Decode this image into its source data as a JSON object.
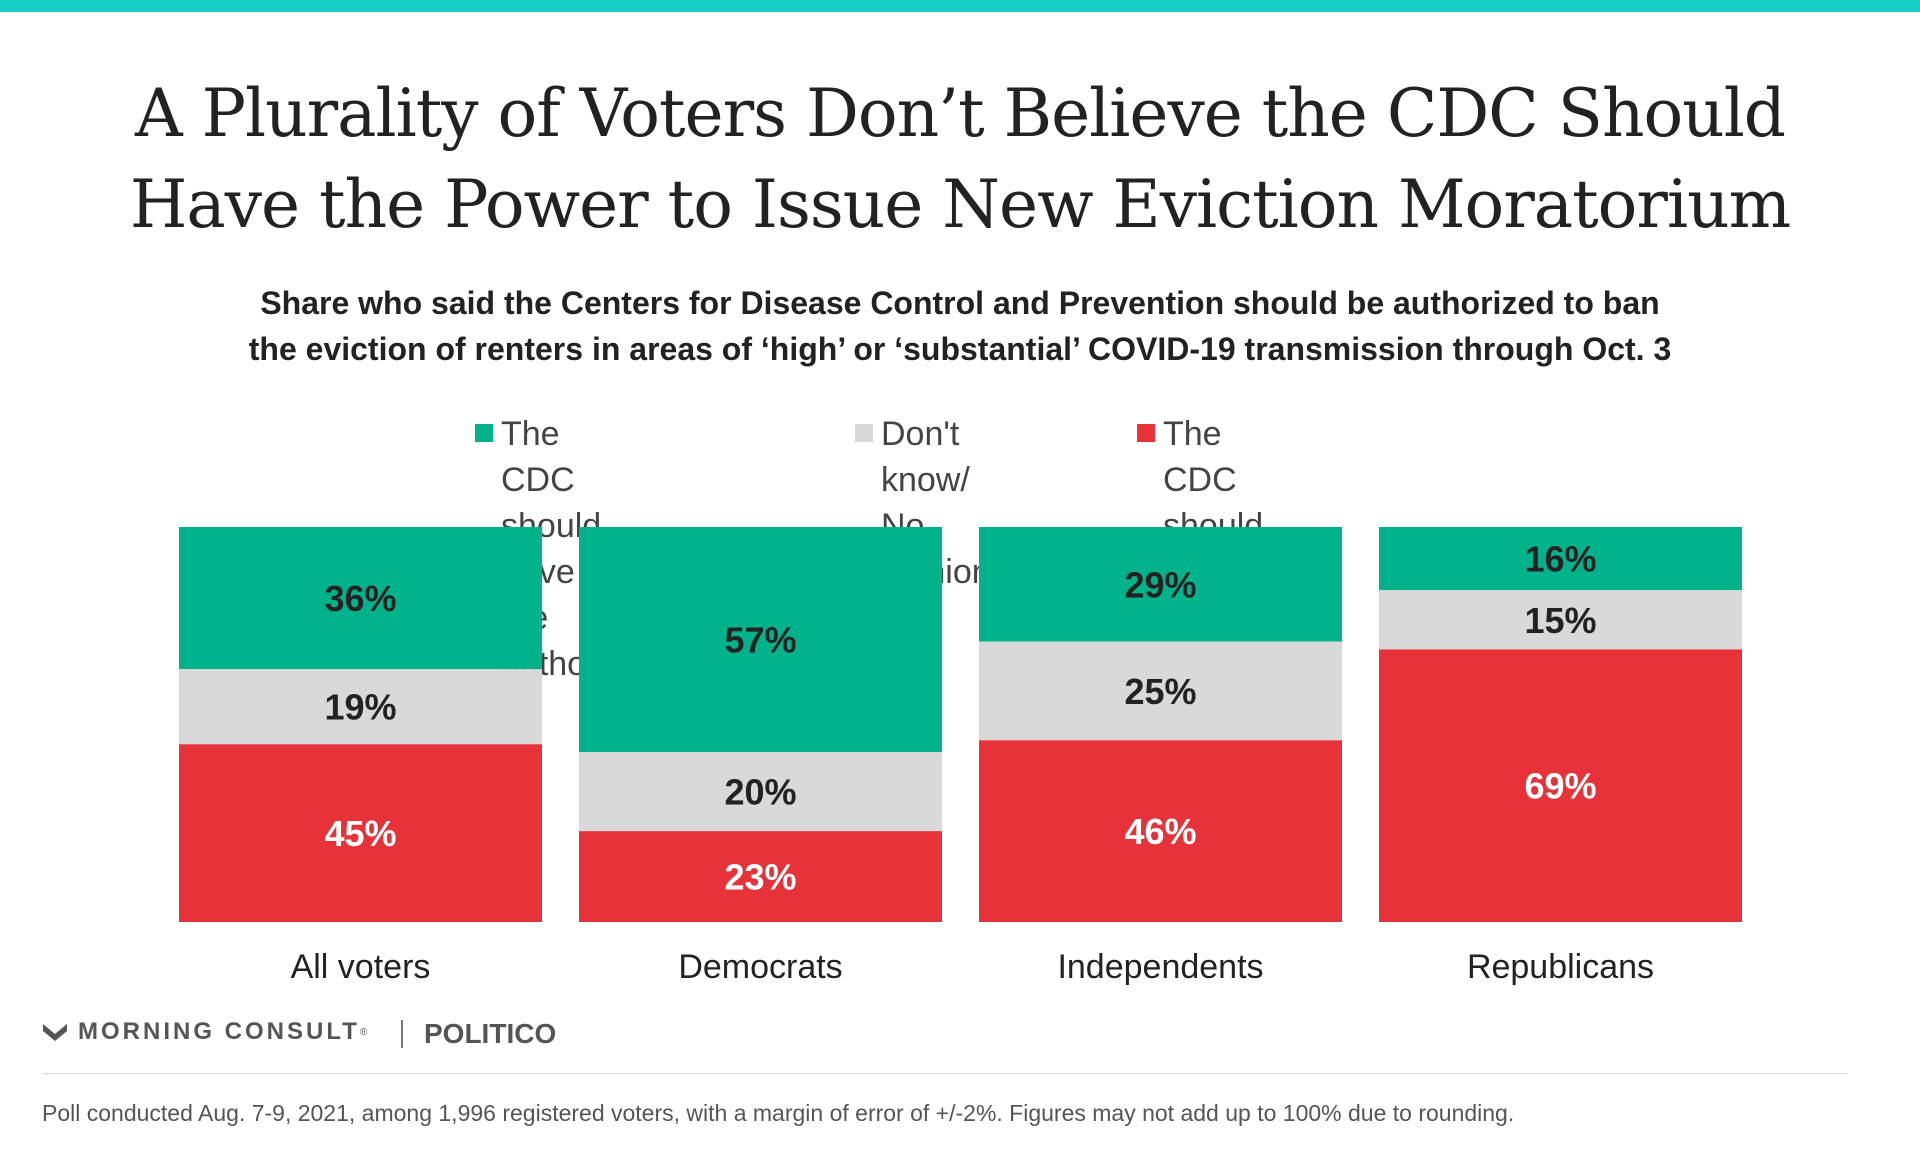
{
  "title_line1": "A Plurality of Voters Don’t Believe the CDC Should",
  "title_line2": "Have the Power to Issue New Eviction Moratorium",
  "subtitle_line1": "Share who said the Centers for Disease Control and Prevention should be authorized to ban",
  "subtitle_line2": "the eviction of renters in areas of ‘high’ or ‘substantial’ COVID-19 transmission through Oct. 3",
  "legend": [
    {
      "label": "The CDC should\nhave the authority",
      "color": "#00b38a"
    },
    {
      "label": "Don't know/\nNo opinion",
      "color": "#d9d9d9"
    },
    {
      "label": "The CDC should not\nhave the authority",
      "color": "#e8323a"
    }
  ],
  "chart_data": {
    "type": "bar",
    "stacked": true,
    "normalized": true,
    "categories": [
      "All voters",
      "Democrats",
      "Independents",
      "Republicans"
    ],
    "series": [
      {
        "name": "The CDC should have the authority",
        "values": [
          36,
          57,
          29,
          16
        ],
        "color": "#00b38a",
        "label_color": "#222222"
      },
      {
        "name": "Don't know/ No opinion",
        "values": [
          19,
          20,
          25,
          15
        ],
        "color": "#d9d9d9",
        "label_color": "#222222"
      },
      {
        "name": "The CDC should not have the authority",
        "values": [
          45,
          23,
          46,
          69
        ],
        "color": "#e8323a",
        "label_color": "#ffffff"
      }
    ],
    "value_suffix": "%"
  },
  "brand": {
    "morning_consult": "MORNING CONSULT",
    "registered_mark": "®",
    "politico": "POLITICO"
  },
  "footnote": "Poll conducted Aug. 7-9, 2021, among 1,996 registered voters, with a margin of error of +/-2%. Figures may not add up to 100% due to rounding."
}
